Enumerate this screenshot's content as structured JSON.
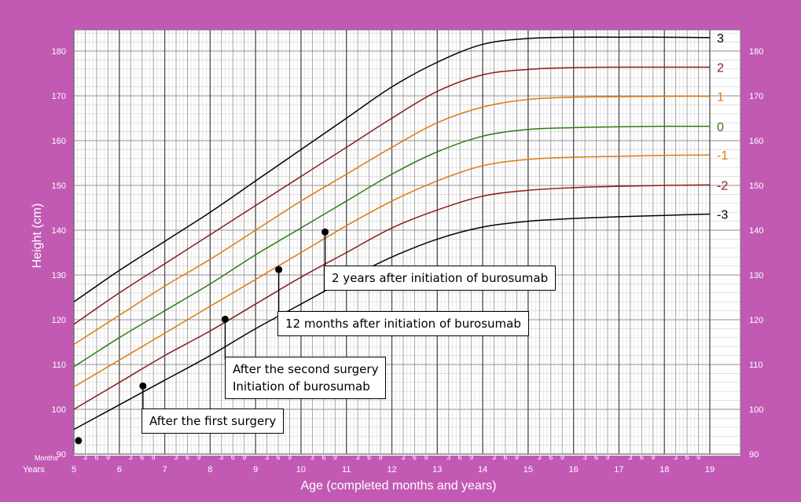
{
  "chart_data": {
    "type": "line",
    "xlabel": "Age (completed months and years)",
    "ylabel": "Height (cm)",
    "row_labels": {
      "months": "Months",
      "years": "Years"
    },
    "xlim": [
      5,
      19
    ],
    "ylim": [
      90,
      185
    ],
    "y_ticks": [
      90,
      100,
      110,
      120,
      130,
      140,
      150,
      160,
      170,
      180
    ],
    "x_ticks": [
      5,
      6,
      7,
      8,
      9,
      10,
      11,
      12,
      13,
      14,
      15,
      16,
      17,
      18,
      19
    ],
    "month_ticks": [
      "3",
      "6",
      "9"
    ],
    "grid": true,
    "series": [
      {
        "name": "3",
        "color": "#000000",
        "x": [
          5,
          6,
          7,
          8,
          9,
          10,
          11,
          12,
          13,
          14,
          15,
          16,
          17,
          18,
          19
        ],
        "values": [
          124,
          131,
          137.5,
          144,
          151,
          158,
          165,
          172,
          177.5,
          181.5,
          182.8,
          183.1,
          183.1,
          183.1,
          183.0
        ]
      },
      {
        "name": "2",
        "color": "#8b1a1a",
        "x": [
          5,
          6,
          7,
          8,
          9,
          10,
          11,
          12,
          13,
          14,
          15,
          16,
          17,
          18,
          19
        ],
        "values": [
          119,
          126,
          132.5,
          139,
          145.5,
          152,
          158.5,
          165,
          171,
          174.7,
          175.9,
          176.3,
          176.4,
          176.4,
          176.4
        ]
      },
      {
        "name": "1",
        "color": "#e07a10",
        "x": [
          5,
          6,
          7,
          8,
          9,
          10,
          11,
          12,
          13,
          14,
          15,
          16,
          17,
          18,
          19
        ],
        "values": [
          114.5,
          121,
          127.5,
          133.5,
          140,
          146.5,
          152.5,
          158.5,
          164,
          167.5,
          169.2,
          169.7,
          169.8,
          169.9,
          169.9
        ]
      },
      {
        "name": "0",
        "color": "#2e7d14",
        "x": [
          5,
          6,
          7,
          8,
          9,
          10,
          11,
          12,
          13,
          14,
          15,
          16,
          17,
          18,
          19
        ],
        "values": [
          109.5,
          116,
          122,
          128,
          134.5,
          140.5,
          146.5,
          152.5,
          157.5,
          161,
          162.5,
          162.9,
          163.1,
          163.2,
          163.2
        ]
      },
      {
        "name": "-1",
        "color": "#e07a10",
        "x": [
          5,
          6,
          7,
          8,
          9,
          10,
          11,
          12,
          13,
          14,
          15,
          16,
          17,
          18,
          19
        ],
        "values": [
          105,
          111,
          117,
          123,
          129,
          135,
          141,
          146.5,
          151,
          154.4,
          155.8,
          156.3,
          156.5,
          156.7,
          156.8
        ]
      },
      {
        "name": "-2",
        "color": "#8b1a1a",
        "x": [
          5,
          6,
          7,
          8,
          9,
          10,
          11,
          12,
          13,
          14,
          15,
          16,
          17,
          18,
          19
        ],
        "values": [
          100,
          106,
          112,
          117.5,
          123.5,
          129.5,
          135,
          140.5,
          144.5,
          147.6,
          148.9,
          149.5,
          149.8,
          150.0,
          150.1
        ]
      },
      {
        "name": "-3",
        "color": "#000000",
        "x": [
          5,
          6,
          7,
          8,
          9,
          10,
          11,
          12,
          13,
          14,
          15,
          16,
          17,
          18,
          19
        ],
        "values": [
          95.5,
          101,
          106.5,
          112,
          118,
          123.5,
          129,
          134,
          138,
          140.7,
          142,
          142.6,
          143.0,
          143.3,
          143.6
        ]
      }
    ],
    "points": [
      {
        "x": 5.1,
        "y": 93
      },
      {
        "x": 6.52,
        "y": 105.2
      },
      {
        "x": 8.33,
        "y": 120.1
      },
      {
        "x": 9.51,
        "y": 131.2
      },
      {
        "x": 10.53,
        "y": 139.6
      }
    ],
    "annotations": [
      {
        "point": 1,
        "lines": [
          "After the first surgery"
        ],
        "box_x": 180,
        "box_y": 520
      },
      {
        "point": 2,
        "lines": [
          "After the second surgery",
          "Initiation of burosumab"
        ],
        "box_x": 286,
        "box_y": 454
      },
      {
        "point": 3,
        "lines": [
          "12 months after initiation of burosumab"
        ],
        "box_x": 353,
        "box_y": 396
      },
      {
        "point": 4,
        "lines": [
          "2 years after initiation of burosumab"
        ],
        "box_x": 412,
        "box_y": 338
      }
    ]
  }
}
